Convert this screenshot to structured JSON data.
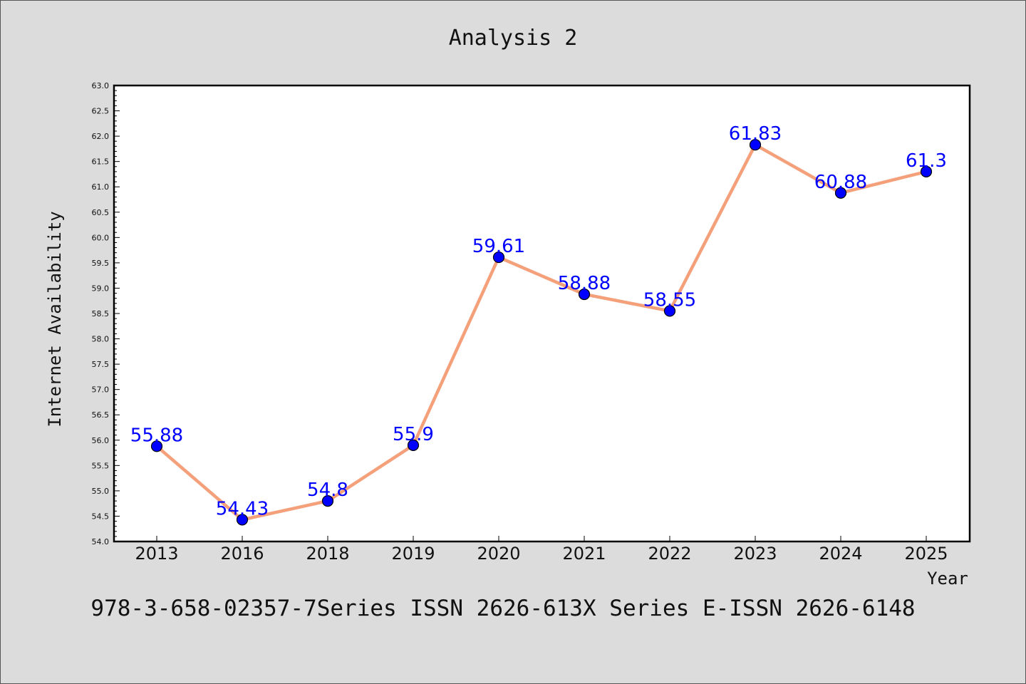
{
  "chart_data": {
    "type": "line",
    "title": "Analysis 2",
    "xlabel": "Year",
    "ylabel": "Internet Availability",
    "categories": [
      "2013",
      "2016",
      "2018",
      "2019",
      "2020",
      "2021",
      "2022",
      "2023",
      "2024",
      "2025"
    ],
    "series": [
      {
        "values": [
          55.88,
          54.43,
          54.8,
          55.9,
          59.61,
          58.88,
          58.55,
          61.83,
          60.88,
          61.3
        ],
        "labels": [
          "55.88",
          "54.43",
          "54.8",
          "55.9",
          "59.61",
          "58.88",
          "58.55",
          "61.83",
          "60.88",
          "61.3"
        ],
        "line_color": "#f4a07a",
        "marker_color": "#0000ff"
      }
    ],
    "ylim": [
      54.0,
      63.0
    ],
    "yticks": [
      "54.0",
      "54.5",
      "55.0",
      "55.5",
      "56.0",
      "56.5",
      "57.0",
      "57.5",
      "58.0",
      "58.5",
      "59.0",
      "59.5",
      "60.0",
      "60.5",
      "61.0",
      "61.5",
      "62.0",
      "62.5",
      "63.0"
    ],
    "grid": false,
    "legend": "none",
    "label_color": "#0000ff",
    "background": "#dcdcdc",
    "plot_background": "#ffffff"
  },
  "footer": {
    "text": "978-3-658-02357-7Series ISSN 2626-613X Series E-ISSN 2626-6148"
  }
}
